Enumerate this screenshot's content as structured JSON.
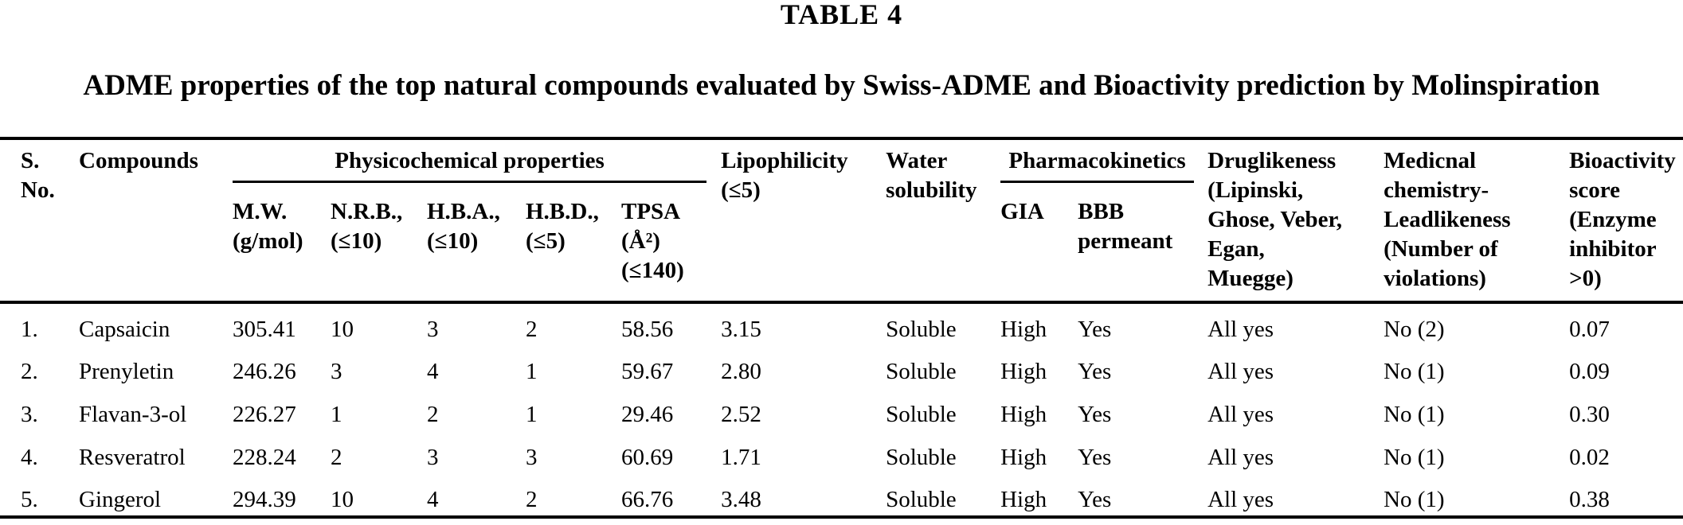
{
  "page": {
    "table_label": "TABLE 4",
    "caption": "ADME properties of the top natural compounds evaluated by Swiss-ADME and Bioactivity prediction by Molinspiration"
  },
  "table": {
    "headers": {
      "sno": "S.\nNo.",
      "compounds": "Compounds",
      "physicochemical_group": "Physicochemical properties",
      "mw": "M.W.\n(g/mol)",
      "nrb": "N.R.B.,\n(≤10)",
      "hba": "H.B.A.,\n(≤10)",
      "hbd": "H.B.D.,\n(≤5)",
      "tpsa": "TPSA\n(Å²)\n(≤140)",
      "lipophilicity": "Lipophilicity\n(≤5)",
      "water_solubility": "Water\nsolubility",
      "pharmacokinetics_group": "Pharmacokinetics",
      "gia": "GIA",
      "bbb": "BBB\npermeant",
      "druglikeness": "Druglikeness\n(Lipinski,\nGhose, Veber,\nEgan,\nMuegge)",
      "medicinal_chemistry": "Medicnal\nchemistry-\nLeadlikeness\n(Number of\nviolations)",
      "bioactivity": "Bioactivity\nscore\n(Enzyme\ninhibitor\n>0)"
    },
    "rows": [
      {
        "cells": [
          "1.",
          "Capsaicin",
          "305.41",
          "10",
          "3",
          "2",
          "58.56",
          "3.15",
          "Soluble",
          "High",
          "Yes",
          "All yes",
          "No (2)",
          "0.07"
        ]
      },
      {
        "cells": [
          "2.",
          "Prenyletin",
          "246.26",
          "3",
          "4",
          "1",
          "59.67",
          "2.80",
          "Soluble",
          "High",
          "Yes",
          "All yes",
          "No (1)",
          "0.09"
        ]
      },
      {
        "cells": [
          "3.",
          "Flavan-3-ol",
          "226.27",
          "1",
          "2",
          "1",
          "29.46",
          "2.52",
          "Soluble",
          "High",
          "Yes",
          "All yes",
          "No (1)",
          "0.30"
        ]
      },
      {
        "cells": [
          "4.",
          "Resveratrol",
          "228.24",
          "2",
          "3",
          "3",
          "60.69",
          "1.71",
          "Soluble",
          "High",
          "Yes",
          "All yes",
          "No (1)",
          "0.02"
        ]
      },
      {
        "cells": [
          "5.",
          "Gingerol",
          "294.39",
          "10",
          "4",
          "2",
          "66.76",
          "3.48",
          "Soluble",
          "High",
          "Yes",
          "All yes",
          "No (1)",
          "0.38"
        ]
      }
    ],
    "colors": {
      "text": "#000000",
      "background": "#ffffff",
      "rule": "#000000"
    }
  }
}
